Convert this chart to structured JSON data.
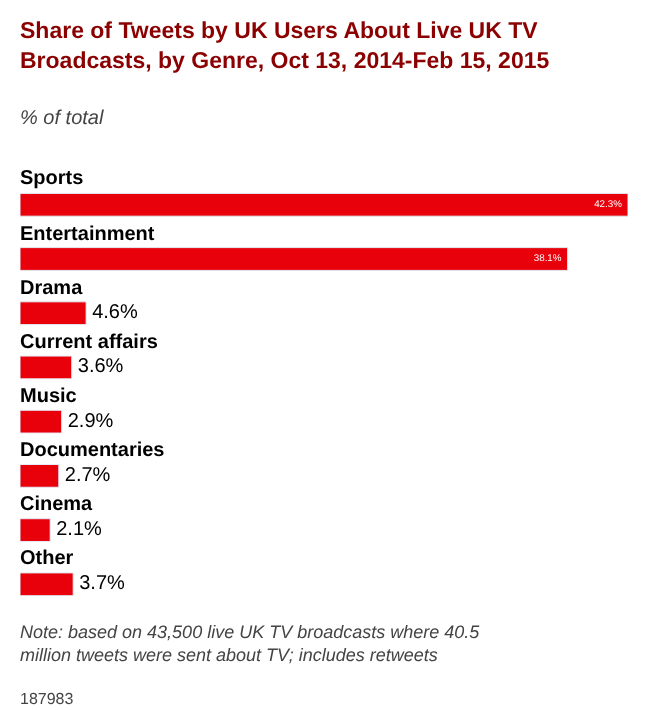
{
  "chart_data": {
    "type": "bar",
    "orientation": "horizontal",
    "title": "Share of Tweets by UK Users About Live UK TV Broadcasts, by Genre, Oct 13, 2014-Feb 15, 2015",
    "subtitle": "% of total",
    "categories": [
      "Sports",
      "Entertainment",
      "Drama",
      "Current affairs",
      "Music",
      "Documentaries",
      "Cinema",
      "Other"
    ],
    "values": [
      42.3,
      38.1,
      4.6,
      3.6,
      2.9,
      2.7,
      2.1,
      3.7
    ],
    "color": "#e8000b",
    "value_labels": [
      "42.3%",
      "38.1%",
      "4.6%",
      "3.6%",
      "2.9%",
      "2.7%",
      "2.1%",
      "3.7%"
    ],
    "annotations": [
      "Note: based on 43,500 live UK TV broadcasts where 40.5 million tweets were sent about TV; includes retweets",
      "187983"
    ]
  }
}
